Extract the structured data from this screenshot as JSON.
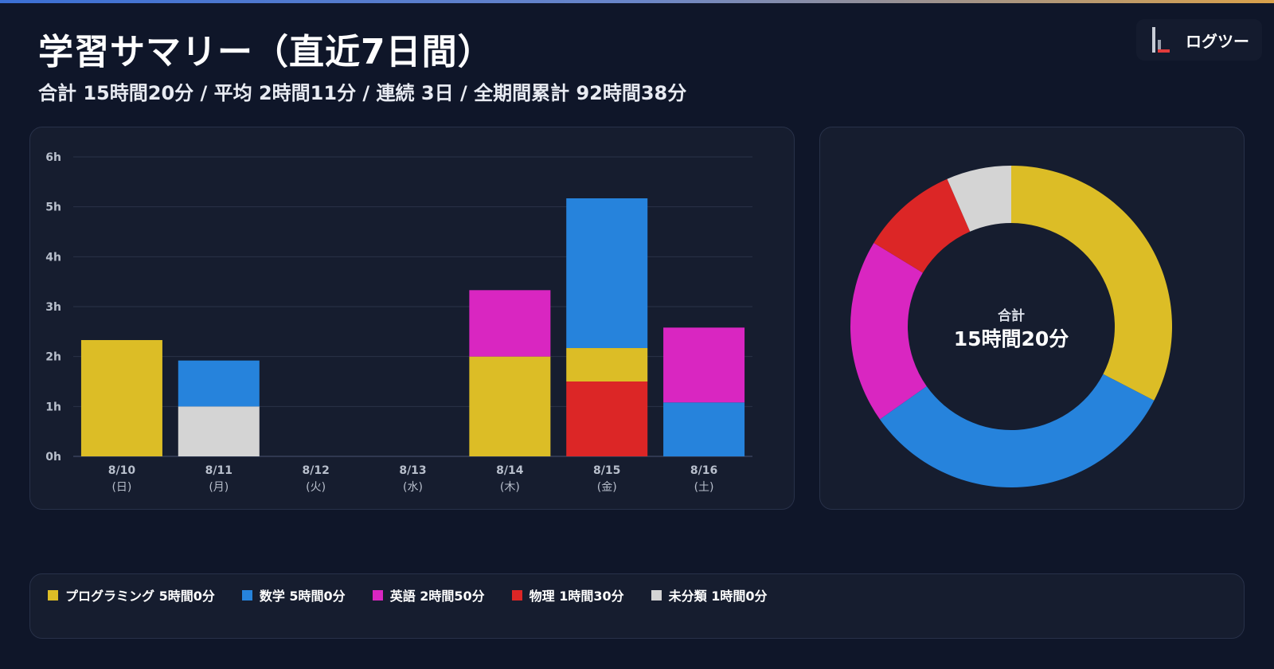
{
  "header": {
    "title": "学習サマリー（直近7日間）",
    "summary": "合計 15時間20分 / 平均 2時間11分 / 連続 3日 / 全期間累計 92時間38分"
  },
  "brand": {
    "name": "ログツー",
    "logo_icon": "bar-logo-icon"
  },
  "colors": {
    "background": "#0f1629",
    "card": "#161d2f",
    "grid": "#2a3248",
    "axis_text": "#b8bfcc"
  },
  "chart_data": [
    {
      "type": "bar",
      "stacked": true,
      "categories": [
        "8/10",
        "8/11",
        "8/12",
        "8/13",
        "8/14",
        "8/15",
        "8/16"
      ],
      "category_sublabels": [
        "(日)",
        "(月)",
        "(火)",
        "(水)",
        "(木)",
        "(金)",
        "(土)"
      ],
      "yticks": [
        "0h",
        "1h",
        "2h",
        "3h",
        "4h",
        "5h",
        "6h"
      ],
      "ylim": [
        0,
        6
      ],
      "grid": true,
      "series": [
        {
          "name": "物理",
          "color": "#dc2626",
          "values": [
            0,
            0,
            0,
            0,
            0,
            1.5,
            0
          ]
        },
        {
          "name": "未分類",
          "color": "#d4d4d4",
          "values": [
            0,
            1.0,
            0,
            0,
            0,
            0,
            0
          ]
        },
        {
          "name": "プログラミング",
          "color": "#dcbd26",
          "values": [
            2.33,
            0,
            0,
            0,
            2.0,
            0.67,
            0
          ]
        },
        {
          "name": "数学",
          "color": "#2683dc",
          "values": [
            0,
            0.92,
            0,
            0,
            0,
            3.0,
            1.08
          ]
        },
        {
          "name": "英語",
          "color": "#d926c1",
          "values": [
            0,
            0,
            0,
            0,
            1.33,
            0,
            1.5
          ]
        }
      ]
    },
    {
      "type": "pie",
      "donut": true,
      "center_label": "合計",
      "center_value": "15時間20分",
      "slices": [
        {
          "name": "プログラミング",
          "minutes": 300,
          "color": "#dcbd26"
        },
        {
          "name": "数学",
          "minutes": 300,
          "color": "#2683dc"
        },
        {
          "name": "英語",
          "minutes": 170,
          "color": "#d926c1"
        },
        {
          "name": "物理",
          "minutes": 90,
          "color": "#dc2626"
        },
        {
          "name": "未分類",
          "minutes": 60,
          "color": "#d4d4d4"
        }
      ]
    }
  ],
  "legend": [
    {
      "label": "プログラミング 5時間0分",
      "color": "#dcbd26"
    },
    {
      "label": "数学 5時間0分",
      "color": "#2683dc"
    },
    {
      "label": "英語 2時間50分",
      "color": "#d926c1"
    },
    {
      "label": "物理 1時間30分",
      "color": "#dc2626"
    },
    {
      "label": "未分類 1時間0分",
      "color": "#d4d4d4"
    }
  ]
}
